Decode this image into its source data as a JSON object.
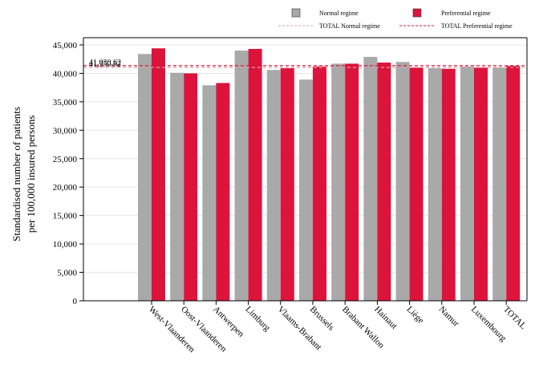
{
  "colors": {
    "normal": "#a9a9a9",
    "preferential": "#dc143c",
    "normal_ref": "#d8a0a6",
    "preferential_ref": "#dc143c",
    "grid": "#e6e6e6"
  },
  "legend": {
    "normal": "Normal regime",
    "preferential": "Preferential regime",
    "total_normal": "TOTAL Normal regime",
    "total_preferential": "TOTAL Preferential regime"
  },
  "chart_data": {
    "type": "bar",
    "title": "",
    "xlabel": "",
    "ylabel_lines": [
      "Standardised number of patients",
      "per 100,000 insured persons"
    ],
    "ylim": [
      0,
      45000
    ],
    "yticks": [
      0,
      5000,
      10000,
      15000,
      20000,
      25000,
      30000,
      35000,
      40000,
      45000
    ],
    "ytick_labels": [
      "0",
      "5,000",
      "10,000",
      "15,000",
      "20,000",
      "25,000",
      "30,000",
      "35,000",
      "40,000",
      "45,000"
    ],
    "grid": true,
    "legend_position": "top",
    "categories": [
      "West-Vlaanderen",
      "Oost-Vlaanderen",
      "Antwerpen",
      "Limburg",
      "Vlaams-Brabant",
      "Brussels",
      "Brabant Wallon",
      "Hainaut",
      "Liège",
      "Namur",
      "Luxembourg",
      "TOTAL"
    ],
    "series": [
      {
        "name": "Normal regime",
        "values": [
          43400,
          40100,
          37900,
          44000,
          40600,
          38900,
          41700,
          42900,
          42000,
          40900,
          41200,
          41000
        ]
      },
      {
        "name": "Preferential regime",
        "values": [
          44400,
          40000,
          38300,
          44300,
          40900,
          41200,
          41700,
          41900,
          41000,
          40800,
          41000,
          41300
        ]
      }
    ],
    "reference_lines": [
      {
        "name": "TOTAL Normal regime",
        "value": 41030.62,
        "label": "41,030.62"
      },
      {
        "name": "TOTAL Preferential regime",
        "value": 41350.82,
        "label": "41,350.82"
      }
    ]
  }
}
